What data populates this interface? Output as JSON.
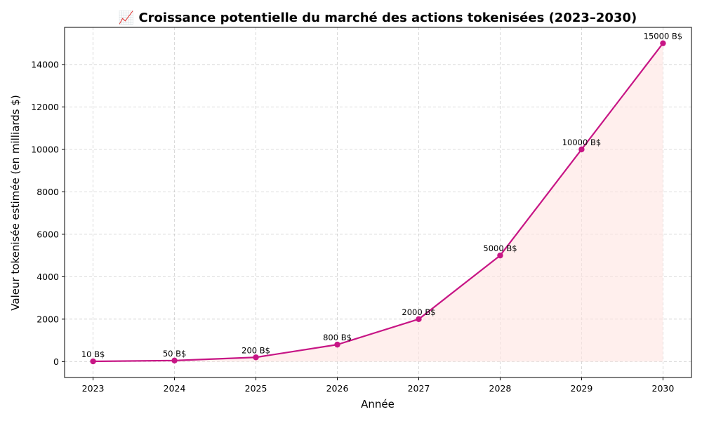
{
  "chart_data": {
    "type": "line",
    "title": "📈 Croissance potentielle du marché des actions tokenisées (2023–2030)",
    "xlabel": "Année",
    "ylabel": "Valeur tokenisée estimée (en milliards $)",
    "x": [
      2023,
      2024,
      2025,
      2026,
      2027,
      2028,
      2029,
      2030
    ],
    "categories": [
      "2023",
      "2024",
      "2025",
      "2026",
      "2027",
      "2028",
      "2029",
      "2030"
    ],
    "series": [
      {
        "values": [
          10,
          50,
          200,
          800,
          2000,
          5000,
          10000,
          15000
        ],
        "data_labels": [
          "10 B$",
          "50 B$",
          "200 B$",
          "800 B$",
          "2000 B$",
          "5000 B$",
          "10000 B$",
          "15000 B$"
        ]
      }
    ],
    "ylim": [
      -750,
      15750
    ],
    "xlim": [
      2022.65,
      2030.35
    ],
    "y_ticks": [
      0,
      2000,
      4000,
      6000,
      8000,
      10000,
      12000,
      14000
    ],
    "y_tick_labels": [
      "0",
      "2000",
      "4000",
      "6000",
      "8000",
      "10000",
      "12000",
      "14000"
    ],
    "grid": true,
    "colors": {
      "line": "#c71585",
      "fill": "#ffe4e1"
    }
  }
}
